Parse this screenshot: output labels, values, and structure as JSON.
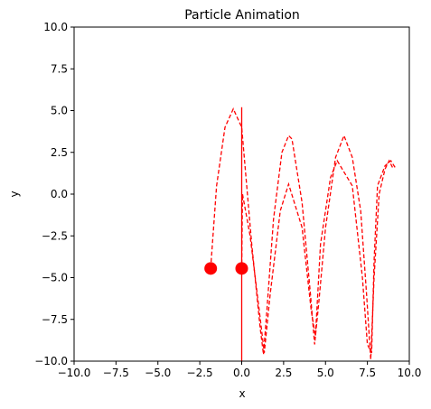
{
  "chart_data": {
    "type": "line",
    "title": "Particle Animation",
    "xlabel": "x",
    "ylabel": "y",
    "xlim": [
      -10,
      10
    ],
    "ylim": [
      -10,
      10
    ],
    "xticks": [
      -10,
      -7.5,
      -5,
      -2.5,
      0,
      2.5,
      5,
      7.5,
      10
    ],
    "yticks": [
      -10,
      -7.5,
      -5,
      -2.5,
      0,
      2.5,
      5,
      7.5,
      10
    ],
    "xtick_labels": [
      "−10.0",
      "−7.5",
      "−5.0",
      "−2.5",
      "0.0",
      "2.5",
      "5.0",
      "7.5",
      "10.0"
    ],
    "ytick_labels": [
      "−10.0",
      "−7.5",
      "−5.0",
      "−2.5",
      "0.0",
      "2.5",
      "5.0",
      "7.5",
      "10.0"
    ],
    "grid": false,
    "color": "#ff0000",
    "series": [
      {
        "style": "dashed",
        "points": [
          [
            9.0,
            1.6
          ],
          [
            8.8,
            2.0
          ],
          [
            8.55,
            1.5
          ],
          [
            8.2,
            0.0
          ],
          [
            7.9,
            -5.0
          ],
          [
            7.7,
            -9.9
          ],
          [
            7.45,
            -6.0
          ],
          [
            7.1,
            -1.0
          ],
          [
            6.6,
            2.2
          ],
          [
            6.1,
            3.5
          ],
          [
            5.6,
            2.2
          ],
          [
            5.0,
            -2.0
          ],
          [
            4.6,
            -6.5
          ],
          [
            4.35,
            -9.0
          ],
          [
            4.1,
            -6.0
          ],
          [
            3.6,
            -0.5
          ],
          [
            3.0,
            3.3
          ],
          [
            2.8,
            3.5
          ],
          [
            2.4,
            2.5
          ],
          [
            1.9,
            -1.5
          ],
          [
            1.5,
            -7.0
          ],
          [
            1.3,
            -9.6
          ],
          [
            1.1,
            -8.0
          ],
          [
            0.6,
            -3.0
          ],
          [
            0.0,
            4.0
          ],
          [
            -0.5,
            5.1
          ],
          [
            -1.0,
            4.0
          ],
          [
            -1.5,
            0.5
          ],
          [
            -1.85,
            -4.4
          ]
        ]
      },
      {
        "style": "dashed",
        "points": [
          [
            9.15,
            1.6
          ],
          [
            8.9,
            2.0
          ],
          [
            8.55,
            1.7
          ],
          [
            8.1,
            0.5
          ],
          [
            7.9,
            -4.0
          ],
          [
            7.75,
            -9.5
          ],
          [
            7.5,
            -9.0
          ],
          [
            7.2,
            -5.0
          ],
          [
            6.6,
            0.5
          ],
          [
            5.7,
            2.0
          ],
          [
            5.3,
            1.0
          ],
          [
            4.7,
            -3.0
          ],
          [
            4.4,
            -8.5
          ],
          [
            4.15,
            -7.0
          ],
          [
            3.6,
            -2.0
          ],
          [
            2.8,
            0.6
          ],
          [
            2.3,
            -1.0
          ],
          [
            1.7,
            -6.0
          ],
          [
            1.35,
            -9.5
          ],
          [
            1.05,
            -7.0
          ],
          [
            0.5,
            -2.5
          ],
          [
            0.05,
            0.0
          ],
          [
            0.0,
            -4.4
          ]
        ]
      },
      {
        "style": "solid",
        "points": [
          [
            0.0,
            5.2
          ],
          [
            0.0,
            -10.0
          ]
        ]
      }
    ],
    "markers": [
      {
        "x": -1.85,
        "y": -4.45
      },
      {
        "x": 0.0,
        "y": -4.45
      }
    ]
  }
}
